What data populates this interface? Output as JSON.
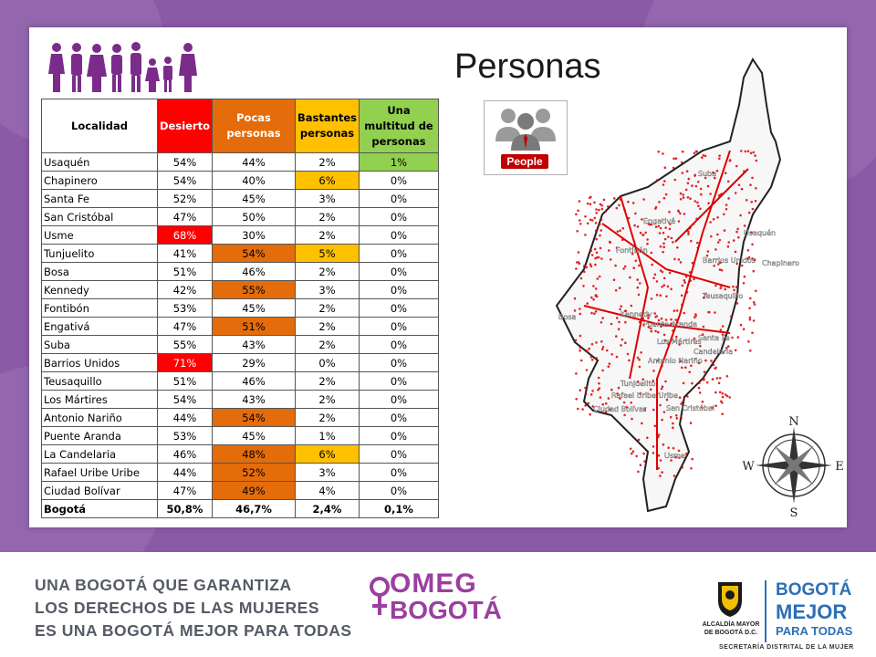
{
  "title": "Personas",
  "table": {
    "headers": [
      "Localidad",
      "Desierto",
      "Pocas personas",
      "Bastantes personas",
      "Una multitud de personas"
    ],
    "rows": [
      {
        "name": "Usaquén",
        "values": [
          "54%",
          "44%",
          "2%",
          "1%"
        ]
      },
      {
        "name": "Chapinero",
        "values": [
          "54%",
          "40%",
          "6%",
          "0%"
        ]
      },
      {
        "name": "Santa Fe",
        "values": [
          "52%",
          "45%",
          "3%",
          "0%"
        ]
      },
      {
        "name": "San Cristóbal",
        "values": [
          "47%",
          "50%",
          "2%",
          "0%"
        ]
      },
      {
        "name": "Usme",
        "values": [
          "68%",
          "30%",
          "2%",
          "0%"
        ]
      },
      {
        "name": "Tunjuelito",
        "values": [
          "41%",
          "54%",
          "5%",
          "0%"
        ]
      },
      {
        "name": "Bosa",
        "values": [
          "51%",
          "46%",
          "2%",
          "0%"
        ]
      },
      {
        "name": "Kennedy",
        "values": [
          "42%",
          "55%",
          "3%",
          "0%"
        ]
      },
      {
        "name": "Fontibón",
        "values": [
          "53%",
          "45%",
          "2%",
          "0%"
        ]
      },
      {
        "name": "Engativá",
        "values": [
          "47%",
          "51%",
          "2%",
          "0%"
        ]
      },
      {
        "name": "Suba",
        "values": [
          "55%",
          "43%",
          "2%",
          "0%"
        ]
      },
      {
        "name": "Barrios Unidos",
        "values": [
          "71%",
          "29%",
          "0%",
          "0%"
        ]
      },
      {
        "name": "Teusaquillo",
        "values": [
          "51%",
          "46%",
          "2%",
          "0%"
        ]
      },
      {
        "name": "Los Mártires",
        "values": [
          "54%",
          "43%",
          "2%",
          "0%"
        ]
      },
      {
        "name": "Antonio Nariño",
        "values": [
          "44%",
          "54%",
          "2%",
          "0%"
        ]
      },
      {
        "name": "Puente Aranda",
        "values": [
          "53%",
          "45%",
          "1%",
          "0%"
        ]
      },
      {
        "name": "La Candelaria",
        "values": [
          "46%",
          "48%",
          "6%",
          "0%"
        ]
      },
      {
        "name": "Rafael Uribe Uribe",
        "values": [
          "44%",
          "52%",
          "3%",
          "0%"
        ]
      },
      {
        "name": "Ciudad Bolívar",
        "values": [
          "47%",
          "49%",
          "4%",
          "0%"
        ]
      }
    ],
    "total": {
      "name": "Bogotá",
      "values": [
        "50,8%",
        "46,7%",
        "2,4%",
        "0,1%"
      ]
    }
  },
  "people_badge_label": "People",
  "map_labels": {
    "suba": "Suba",
    "engativa": "Engativá",
    "usaquen": "Usaquén",
    "fontibon": "Fontibón",
    "barrios_unidos": "Barrios Unidos",
    "chapinero": "Chapinero",
    "teusaquillo": "Teusaquillo",
    "kennedy": "Kennedy",
    "bosa": "Bosa",
    "puente_aranda": "Puente Aranda",
    "los_martires": "Los Mártires",
    "santa_fe": "Santa Fe",
    "candelaria": "Candelaria",
    "antonio_narino": "Antonio Nariño",
    "tunjuelito": "Tunjuelito",
    "rafael_uribe": "Rafael Uribe Uribe",
    "san_cristobal": "San Cristóbal",
    "ciudad_bolivar": "Ciudad Bolívar",
    "usme": "Usme"
  },
  "compass": {
    "n": "N",
    "s": "S",
    "e": "E",
    "w": "W"
  },
  "footer": {
    "line1": "UNA BOGOTÁ QUE GARANTIZA",
    "line2": "LOS DERECHOS DE LAS MUJERES",
    "line3": "ES UNA BOGOTÁ MEJOR PARA TODAS"
  },
  "omeg": {
    "line1": "OMEG",
    "line2": "BOGOTÁ"
  },
  "alcaldia": {
    "line1": "ALCALDÍA MAYOR",
    "line2": "DE BOGOTÁ D.C."
  },
  "bogota_mejor": {
    "line1": "BOGOTÁ",
    "line2": "MEJOR",
    "line3": "PARA TODAS"
  },
  "secretaria": "SECRETARÍA DISTRITAL DE LA MUJER",
  "colors": {
    "band": "#8a5aa6",
    "desierto": "#ff0000",
    "pocas": "#e46c0a",
    "bastantes": "#ffc000",
    "multitud": "#92d050",
    "brand_purple": "#9b3fa0",
    "brand_blue": "#2d6fb7"
  }
}
